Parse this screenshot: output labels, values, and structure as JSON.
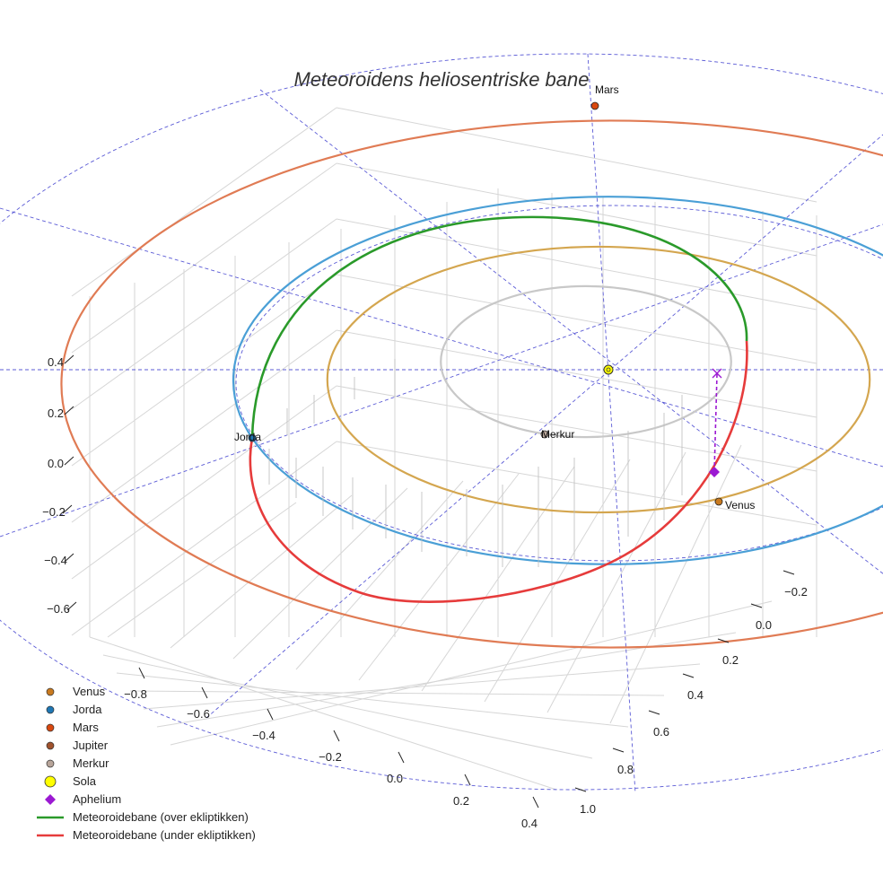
{
  "chart_data": {
    "type": "scatter",
    "projection": "3d",
    "title": "Meteoroidens heliosentriske bane",
    "axes": {
      "x": {
        "ticks": [
          "−0.8",
          "−0.6",
          "−0.4",
          "−0.2",
          "0.0",
          "0.2",
          "0.4"
        ]
      },
      "y": {
        "ticks": [
          "−0.2",
          "0.0",
          "0.2",
          "0.4",
          "0.6",
          "0.8",
          "1.0"
        ]
      },
      "z": {
        "ticks": [
          "0.4",
          "0.2",
          "0.0",
          "−0.2",
          "−0.4",
          "−0.6"
        ]
      },
      "grid": true
    },
    "legend": {
      "placement": "bottom-left",
      "entries": [
        {
          "label": "Venus",
          "kind": "marker",
          "color": "#c97a1f"
        },
        {
          "label": "Jorda",
          "kind": "marker",
          "color": "#1f77b4"
        },
        {
          "label": "Mars",
          "kind": "marker",
          "color": "#d9480f"
        },
        {
          "label": "Jupiter",
          "kind": "marker",
          "color": "#a0522d"
        },
        {
          "label": "Merkur",
          "kind": "marker",
          "color": "#b8a59a"
        },
        {
          "label": "Sola",
          "kind": "sun",
          "color": "#ffff00"
        },
        {
          "label": "Aphelium",
          "kind": "diamond",
          "color": "#9b19d2"
        },
        {
          "label": "Meteoroidebane (over ekliptikken)",
          "kind": "line",
          "color": "#2a9a2a"
        },
        {
          "label": "Meteoroidebane (under ekliptikken)",
          "kind": "line",
          "color": "#e63b3b"
        }
      ]
    },
    "orbits": [
      {
        "name": "Merkur",
        "semi_major_au": 0.387,
        "color": "#c8c8c8"
      },
      {
        "name": "Venus",
        "semi_major_au": 0.723,
        "color": "#d4a64f"
      },
      {
        "name": "Jorda",
        "semi_major_au": 1.0,
        "color": "#4a9fd6"
      },
      {
        "name": "Mars",
        "semi_major_au": 1.524,
        "color": "#e07b54"
      }
    ],
    "planet_labels": [
      {
        "name": "Mars",
        "label": "Mars",
        "color": "#d9480f"
      },
      {
        "name": "Jorda",
        "label": "Jorda",
        "color": "#1f77b4"
      },
      {
        "name": "Merkur",
        "label": "Merkur",
        "color": "#b8a59a"
      },
      {
        "name": "Venus",
        "label": "Venus",
        "color": "#c97a1f"
      }
    ],
    "meteoroid": {
      "over_color": "#2a9a2a",
      "under_color": "#e63b3b",
      "aphelion_color": "#9b19d2"
    },
    "sun_color": "#ffff00"
  }
}
